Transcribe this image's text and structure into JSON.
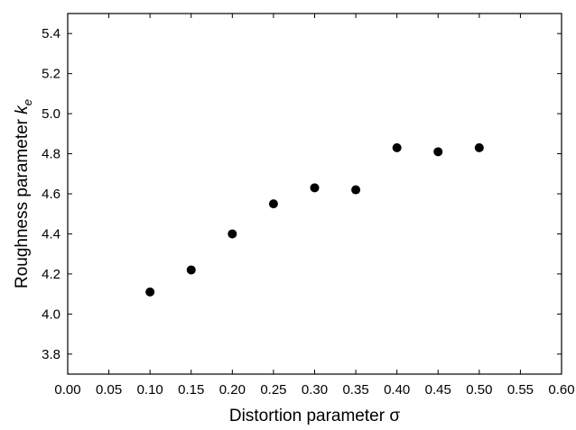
{
  "chart_data": {
    "type": "scatter",
    "xlabel": "Distortion parameter σ",
    "ylabel": {
      "prefix": "Roughness parameter ",
      "symbol": "k",
      "subscript": "e"
    },
    "xlim": [
      0.0,
      0.6
    ],
    "ylim": [
      3.7,
      5.5
    ],
    "xticks": [
      "0.00",
      "0.05",
      "0.10",
      "0.15",
      "0.20",
      "0.25",
      "0.30",
      "0.35",
      "0.40",
      "0.45",
      "0.50",
      "0.55",
      "0.60"
    ],
    "yticks": [
      "3.8",
      "4.0",
      "4.2",
      "4.4",
      "4.6",
      "4.8",
      "5.0",
      "5.2",
      "5.4"
    ],
    "grid": false,
    "marker_color": "#000000",
    "series": [
      {
        "x": [
          0.1,
          0.15,
          0.2,
          0.25,
          0.3,
          0.35,
          0.4,
          0.45,
          0.5
        ],
        "y": [
          4.11,
          4.22,
          4.4,
          4.55,
          4.63,
          4.62,
          4.83,
          4.81,
          4.83
        ]
      }
    ]
  }
}
